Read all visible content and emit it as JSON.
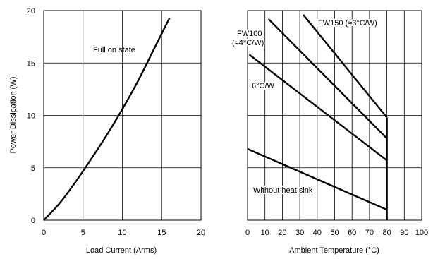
{
  "chart_data": [
    {
      "type": "line",
      "xlabel": "Load Current (Arms)",
      "ylabel": "Power Dissipation (W)",
      "xlim": [
        0,
        20
      ],
      "ylim": [
        0,
        20
      ],
      "xticks": [
        "0",
        "5",
        "10",
        "15",
        "20"
      ],
      "yticks": [
        "0",
        "5",
        "10",
        "15",
        "20"
      ],
      "grid": true,
      "series": [
        {
          "name": "Full on state",
          "x": [
            0,
            2,
            4,
            6,
            8,
            10,
            12,
            14,
            16
          ],
          "y": [
            0,
            1.6,
            3.6,
            5.8,
            8.1,
            10.6,
            13.3,
            16.3,
            19.3
          ]
        }
      ]
    },
    {
      "type": "line",
      "xlabel": "Ambient Temperature (°C)",
      "ylabel": "",
      "xlim": [
        0,
        100
      ],
      "ylim": [
        0,
        20
      ],
      "xticks": [
        "0",
        "10",
        "20",
        "30",
        "40",
        "50",
        "60",
        "70",
        "80",
        "90",
        "100"
      ],
      "grid": true,
      "series": [
        {
          "name": "FW150 (≈3°C/W)",
          "x": [
            32,
            80
          ],
          "y": [
            19.6,
            9.8
          ]
        },
        {
          "name": "FW100\n(≈4°C/W)",
          "x": [
            12,
            80
          ],
          "y": [
            19.2,
            7.8
          ]
        },
        {
          "name": "6°C/W",
          "x": [
            1,
            80
          ],
          "y": [
            15.8,
            5.7
          ]
        },
        {
          "name": "Without heat sink",
          "x": [
            0,
            80
          ],
          "y": [
            6.8,
            1.0
          ]
        }
      ]
    }
  ],
  "annotations": {
    "left": {
      "full_on_state": "Full on state"
    },
    "right": {
      "fw150": "FW150 (≈3°C/W)",
      "fw100_line1": "FW100",
      "fw100_line2": "(≈4°C/W)",
      "six": "6°C/W",
      "without": "Without heat sink"
    }
  }
}
